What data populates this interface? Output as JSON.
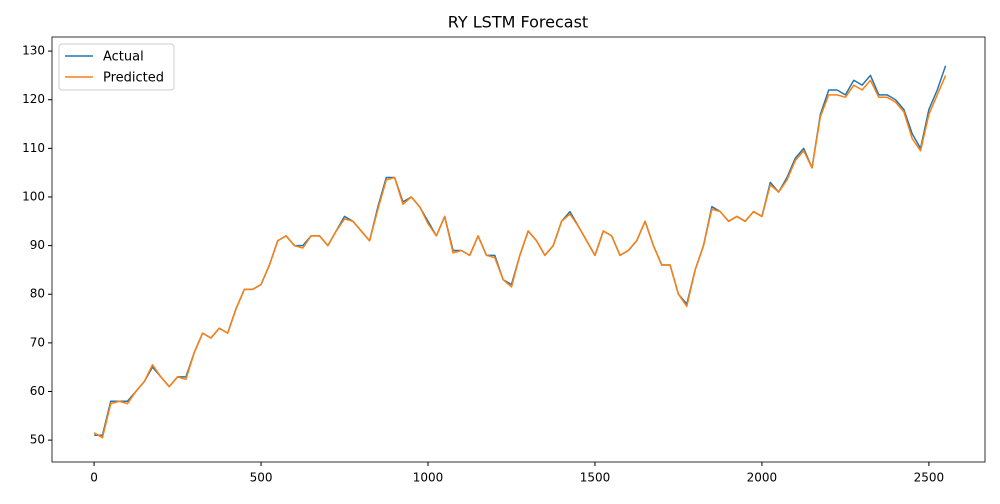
{
  "chart_data": {
    "type": "line",
    "title": "RY LSTM Forecast",
    "x": [
      0,
      25,
      50,
      75,
      100,
      125,
      150,
      175,
      200,
      225,
      250,
      275,
      300,
      325,
      350,
      375,
      400,
      425,
      450,
      475,
      500,
      525,
      550,
      575,
      600,
      625,
      650,
      675,
      700,
      725,
      750,
      775,
      800,
      825,
      850,
      875,
      900,
      925,
      950,
      975,
      1000,
      1025,
      1050,
      1075,
      1100,
      1125,
      1150,
      1175,
      1200,
      1225,
      1250,
      1275,
      1300,
      1325,
      1350,
      1375,
      1400,
      1425,
      1450,
      1475,
      1500,
      1525,
      1550,
      1575,
      1600,
      1625,
      1650,
      1675,
      1700,
      1725,
      1750,
      1775,
      1800,
      1825,
      1850,
      1875,
      1900,
      1925,
      1950,
      1975,
      2000,
      2025,
      2050,
      2075,
      2100,
      2125,
      2150,
      2175,
      2200,
      2225,
      2250,
      2275,
      2300,
      2325,
      2350,
      2375,
      2400,
      2425,
      2450,
      2475,
      2500,
      2525,
      2550
    ],
    "series": [
      {
        "name": "Actual",
        "color": "#1f77b4",
        "values": [
          51,
          51,
          58,
          58,
          58,
          60,
          62,
          65,
          63,
          61,
          63,
          63,
          68,
          72,
          71,
          73,
          72,
          77,
          81,
          81,
          82,
          86,
          91,
          92,
          90,
          90,
          92,
          92,
          90,
          93,
          96,
          95,
          93,
          91,
          98,
          104,
          104,
          99,
          100,
          98,
          95,
          92,
          96,
          89,
          89,
          88,
          92,
          88,
          88,
          83,
          82,
          88,
          93,
          91,
          88,
          90,
          95,
          97,
          94,
          91,
          88,
          93,
          92,
          88,
          89,
          91,
          95,
          90,
          86,
          86,
          80,
          78,
          85,
          90,
          98,
          97,
          95,
          96,
          95,
          97,
          96,
          103,
          101,
          104,
          108,
          110,
          106,
          117,
          122,
          122,
          121,
          124,
          123,
          125,
          121,
          121,
          120,
          118,
          113,
          110,
          118,
          122,
          127
        ]
      },
      {
        "name": "Predicted",
        "color": "#ff7f0e",
        "values": [
          51.5,
          50.5,
          57.5,
          58,
          57.5,
          60,
          62,
          65.5,
          63,
          61,
          63,
          62.5,
          68,
          72,
          71,
          73,
          72,
          77,
          81,
          81,
          82,
          86,
          91,
          92,
          90,
          89.5,
          92,
          92,
          90,
          93,
          95.5,
          95,
          93,
          91,
          97.5,
          103.5,
          104,
          98.5,
          100,
          98,
          94.5,
          92,
          96,
          88.5,
          89,
          88,
          92,
          88,
          87.5,
          83,
          81.5,
          88,
          93,
          91,
          88,
          90,
          95,
          96.5,
          94,
          91,
          88,
          93,
          92,
          88,
          89,
          91,
          95,
          90,
          86,
          86,
          80,
          77.5,
          85,
          90,
          97.5,
          97,
          95,
          96,
          95,
          97,
          96,
          102.5,
          101,
          103.5,
          107.5,
          109.5,
          106,
          116.5,
          121,
          121,
          120.5,
          123,
          122,
          124,
          120.5,
          120.5,
          119.5,
          117.5,
          112,
          109.5,
          117,
          121,
          125
        ]
      }
    ],
    "xlim": [
      -126,
      2668
    ],
    "ylim": [
      45.5,
      132.9
    ],
    "xticks": [
      0,
      500,
      1000,
      1500,
      2000,
      2500
    ],
    "yticks": [
      50,
      60,
      70,
      80,
      90,
      100,
      110,
      120,
      130
    ],
    "legend": "upper left",
    "grid": false
  }
}
